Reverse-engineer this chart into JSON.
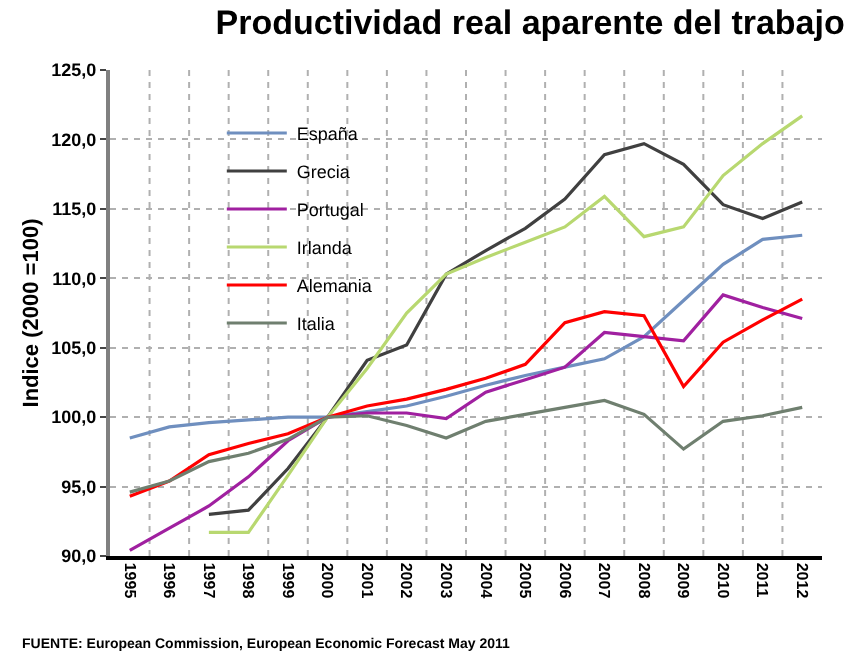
{
  "chart_data": {
    "type": "line",
    "title": "Productividad real aparente del trabajo",
    "ylabel": "Indice (2000 =100)",
    "categories": [
      "1995",
      "1996",
      "1997",
      "1998",
      "1999",
      "2000",
      "2001",
      "2002",
      "2003",
      "2004",
      "2005",
      "2006",
      "2007",
      "2008",
      "2009",
      "2010",
      "2011",
      "2012"
    ],
    "series": [
      {
        "name": "España",
        "color": "#6f8fbf",
        "values": [
          98.5,
          99.3,
          99.6,
          99.8,
          100.0,
          100.0,
          100.4,
          100.8,
          101.5,
          102.3,
          103.0,
          103.6,
          104.2,
          105.8,
          108.4,
          111.0,
          112.8,
          113.1
        ]
      },
      {
        "name": "Grecia",
        "color": "#404040",
        "values": [
          null,
          null,
          93.0,
          93.3,
          96.3,
          100.0,
          104.1,
          105.2,
          110.3,
          112.0,
          113.6,
          115.7,
          118.9,
          119.7,
          118.2,
          115.3,
          114.3,
          115.5
        ]
      },
      {
        "name": "Portugal",
        "color": "#a020a0",
        "values": [
          90.4,
          92.0,
          93.6,
          95.7,
          98.3,
          100.0,
          100.3,
          100.3,
          99.9,
          101.8,
          102.7,
          103.6,
          106.1,
          105.8,
          105.5,
          108.8,
          107.9,
          107.1
        ]
      },
      {
        "name": "Irlanda",
        "color": "#b8d870",
        "values": [
          null,
          null,
          91.7,
          91.7,
          95.8,
          100.0,
          103.5,
          107.5,
          110.3,
          111.5,
          112.6,
          113.7,
          115.9,
          113.0,
          113.7,
          117.4,
          119.7,
          121.7
        ]
      },
      {
        "name": "Alemania",
        "color": "#ff0000",
        "values": [
          94.3,
          95.4,
          97.3,
          98.1,
          98.8,
          100.0,
          100.8,
          101.3,
          102.0,
          102.8,
          103.8,
          106.8,
          107.6,
          107.3,
          102.2,
          105.4,
          107.0,
          108.5
        ]
      },
      {
        "name": "Italia",
        "color": "#6f7f6f",
        "values": [
          94.6,
          95.4,
          96.8,
          97.4,
          98.4,
          100.0,
          100.1,
          99.4,
          98.5,
          99.7,
          100.2,
          100.7,
          101.2,
          100.2,
          97.7,
          99.7,
          100.1,
          100.7
        ]
      }
    ],
    "ylim": [
      90,
      125
    ],
    "yticks": [
      {
        "value": 90,
        "label": "90,0"
      },
      {
        "value": 95,
        "label": "95,0"
      },
      {
        "value": 100,
        "label": "100,0"
      },
      {
        "value": 105,
        "label": "105,0"
      },
      {
        "value": 110,
        "label": "110,0"
      },
      {
        "value": 115,
        "label": "115,0"
      },
      {
        "value": 120,
        "label": "120,0"
      },
      {
        "value": 125,
        "label": "125,0"
      }
    ],
    "grid": true,
    "legend": "top left",
    "line_style": "solid",
    "marker": "none",
    "annotations": [
      "FUENTE: European Commission, European Economic Forecast May 2011"
    ]
  }
}
